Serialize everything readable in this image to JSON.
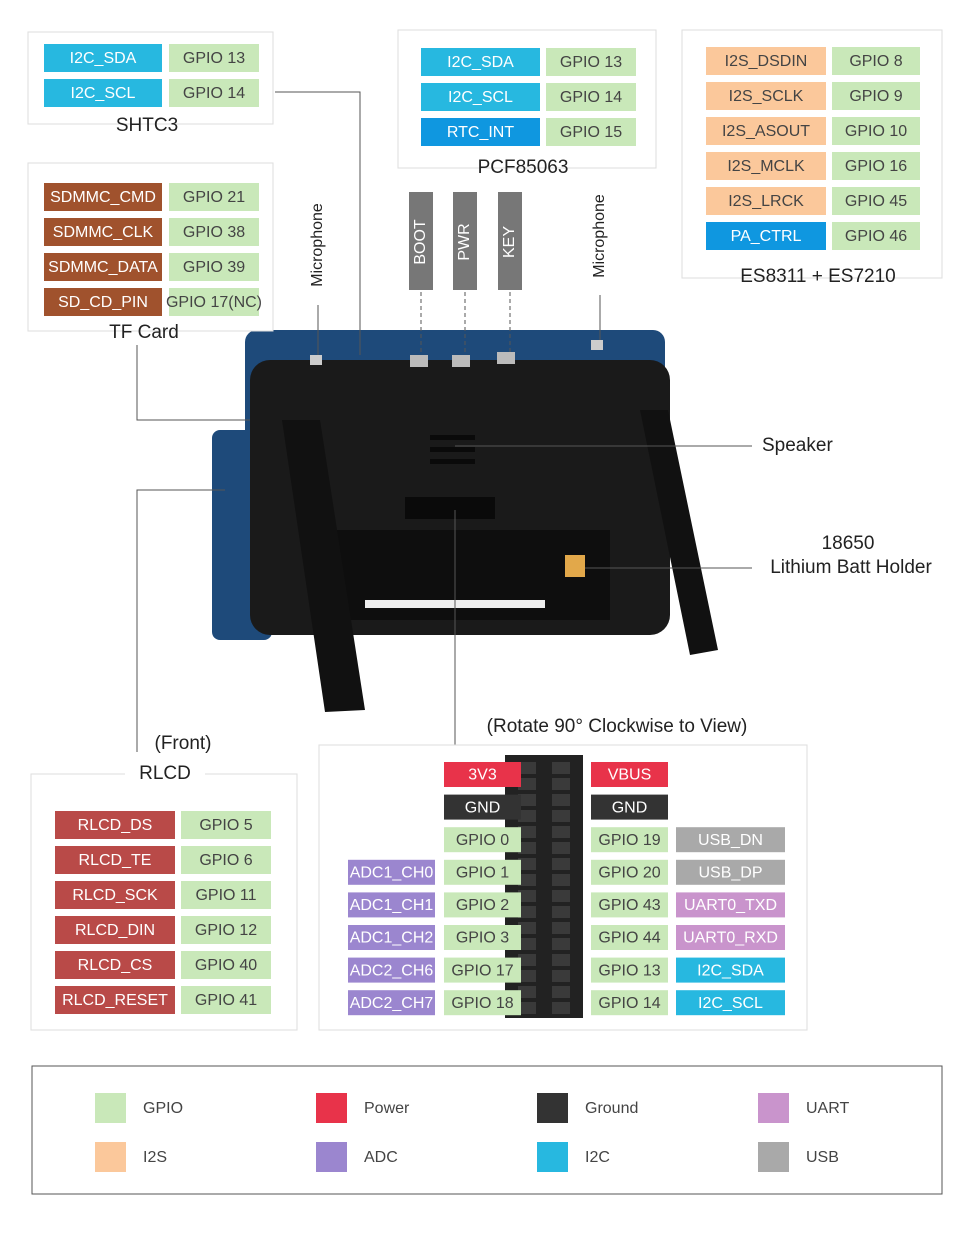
{
  "gpio_color": "#c9e8b9",
  "shtc3": {
    "label": "SHTC3",
    "pins": [
      {
        "name": "I2C_SDA",
        "gpio": "GPIO 13",
        "color": "#27b8e0"
      },
      {
        "name": "I2C_SCL",
        "gpio": "GPIO 14",
        "color": "#27b8e0"
      }
    ]
  },
  "tf_card": {
    "label": "TF Card",
    "pins": [
      {
        "name": "SDMMC_CMD",
        "gpio": "GPIO 21",
        "color": "#a0522d"
      },
      {
        "name": "SDMMC_CLK",
        "gpio": "GPIO 38",
        "color": "#a0522d"
      },
      {
        "name": "SDMMC_DATA",
        "gpio": "GPIO 39",
        "color": "#a0522d"
      },
      {
        "name": "SD_CD_PIN",
        "gpio": "GPIO 17(NC)",
        "color": "#a0522d"
      }
    ]
  },
  "pcf85063": {
    "label": "PCF85063",
    "pins": [
      {
        "name": "I2C_SDA",
        "gpio": "GPIO 13",
        "color": "#27b8e0"
      },
      {
        "name": "I2C_SCL",
        "gpio": "GPIO 14",
        "color": "#27b8e0"
      },
      {
        "name": "RTC_INT",
        "gpio": "GPIO 15",
        "color": "#0f97e0"
      }
    ]
  },
  "audio": {
    "label": "ES8311 + ES7210",
    "pins": [
      {
        "name": "I2S_DSDIN",
        "gpio": "GPIO 8",
        "color": "#fbc89b"
      },
      {
        "name": "I2S_SCLK",
        "gpio": "GPIO 9",
        "color": "#fbc89b"
      },
      {
        "name": "I2S_ASOUT",
        "gpio": "GPIO 10",
        "color": "#fbc89b"
      },
      {
        "name": "I2S_MCLK",
        "gpio": "GPIO 16",
        "color": "#fbc89b"
      },
      {
        "name": "I2S_LRCK",
        "gpio": "GPIO 45",
        "color": "#fbc89b"
      },
      {
        "name": "PA_CTRL",
        "gpio": "GPIO 46",
        "color": "#0f97e0"
      }
    ]
  },
  "rlcd": {
    "note": "(Front)",
    "label": "RLCD",
    "pins": [
      {
        "name": "RLCD_DS",
        "gpio": "GPIO 5",
        "color": "#b94a48"
      },
      {
        "name": "RLCD_TE",
        "gpio": "GPIO 6",
        "color": "#b94a48"
      },
      {
        "name": "RLCD_SCK",
        "gpio": "GPIO 11",
        "color": "#b94a48"
      },
      {
        "name": "RLCD_DIN",
        "gpio": "GPIO 12",
        "color": "#b94a48"
      },
      {
        "name": "RLCD_CS",
        "gpio": "GPIO 40",
        "color": "#b94a48"
      },
      {
        "name": "RLCD_RESET",
        "gpio": "GPIO 41",
        "color": "#b94a48"
      }
    ]
  },
  "callouts": {
    "mic_left": "Microphone",
    "mic_right": "Microphone",
    "boot": "BOOT",
    "pwr": "PWR",
    "key": "KEY",
    "speaker": "Speaker",
    "batt_1": "18650",
    "batt_2": "Lithium Batt Holder"
  },
  "header": {
    "title": "(Rotate 90° Clockwise to View)",
    "rows": [
      {
        "lpin": {
          "text": "3V3",
          "color": "#e8334a"
        },
        "rpin": {
          "text": "VBUS",
          "color": "#e8334a"
        }
      },
      {
        "lpin": {
          "text": "GND",
          "color": "#333333"
        },
        "rpin": {
          "text": "GND",
          "color": "#333333"
        }
      },
      {
        "lpin": {
          "text": "GPIO 0",
          "color": "#c9e8b9"
        },
        "rpin": {
          "text": "GPIO 19",
          "color": "#c9e8b9"
        },
        "right": {
          "text": "USB_DN",
          "color": "#a9a9a9"
        }
      },
      {
        "left": {
          "text": "ADC1_CH0",
          "color": "#9b86cf"
        },
        "lpin": {
          "text": "GPIO 1",
          "color": "#c9e8b9"
        },
        "rpin": {
          "text": "GPIO 20",
          "color": "#c9e8b9"
        },
        "right": {
          "text": "USB_DP",
          "color": "#a9a9a9"
        }
      },
      {
        "left": {
          "text": "ADC1_CH1",
          "color": "#9b86cf"
        },
        "lpin": {
          "text": "GPIO 2",
          "color": "#c9e8b9"
        },
        "rpin": {
          "text": "GPIO 43",
          "color": "#c9e8b9"
        },
        "right": {
          "text": "UART0_TXD",
          "color": "#c994cc"
        }
      },
      {
        "left": {
          "text": "ADC1_CH2",
          "color": "#9b86cf"
        },
        "lpin": {
          "text": "GPIO 3",
          "color": "#c9e8b9"
        },
        "rpin": {
          "text": "GPIO 44",
          "color": "#c9e8b9"
        },
        "right": {
          "text": "UART0_RXD",
          "color": "#c994cc"
        }
      },
      {
        "left": {
          "text": "ADC2_CH6",
          "color": "#9b86cf"
        },
        "lpin": {
          "text": "GPIO 17",
          "color": "#c9e8b9"
        },
        "rpin": {
          "text": "GPIO 13",
          "color": "#c9e8b9"
        },
        "right": {
          "text": "I2C_SDA",
          "color": "#27b8e0"
        }
      },
      {
        "left": {
          "text": "ADC2_CH7",
          "color": "#9b86cf"
        },
        "lpin": {
          "text": "GPIO 18",
          "color": "#c9e8b9"
        },
        "rpin": {
          "text": "GPIO 14",
          "color": "#c9e8b9"
        },
        "right": {
          "text": "I2C_SCL",
          "color": "#27b8e0"
        }
      }
    ]
  },
  "legend": [
    {
      "label": "GPIO",
      "color": "#c9e8b9"
    },
    {
      "label": "I2S",
      "color": "#fbc89b"
    },
    {
      "label": "Power",
      "color": "#e8334a"
    },
    {
      "label": "ADC",
      "color": "#9b86cf"
    },
    {
      "label": "Ground",
      "color": "#333333"
    },
    {
      "label": "I2C",
      "color": "#27b8e0"
    },
    {
      "label": "UART",
      "color": "#c994cc"
    },
    {
      "label": "USB",
      "color": "#a9a9a9"
    }
  ]
}
